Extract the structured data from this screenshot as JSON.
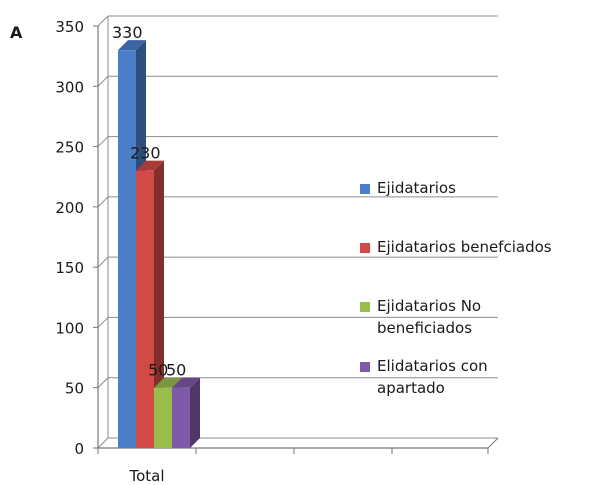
{
  "panel_label": "A",
  "chart_data": {
    "type": "bar",
    "style": "3d-clustered-column",
    "categories": [
      "Total"
    ],
    "series": [
      {
        "name": "Ejidatarios",
        "values": [
          330
        ],
        "color": "#4a7ec9"
      },
      {
        "name": "Ejidatarios benefciados",
        "values": [
          230
        ],
        "color": "#d24a46"
      },
      {
        "name": "Ejidatarios No beneficiados",
        "values": [
          50
        ],
        "color": "#98bd4d"
      },
      {
        "name": "Elidatarios con apartado",
        "values": [
          50
        ],
        "color": "#7f5aa8"
      }
    ],
    "data_labels": [
      "330",
      "230",
      "50",
      "50"
    ],
    "yticks": [
      "0",
      "50",
      "100",
      "150",
      "200",
      "250",
      "300",
      "350"
    ],
    "ylim": [
      0,
      350
    ],
    "grid": true,
    "legend_position": "right"
  }
}
